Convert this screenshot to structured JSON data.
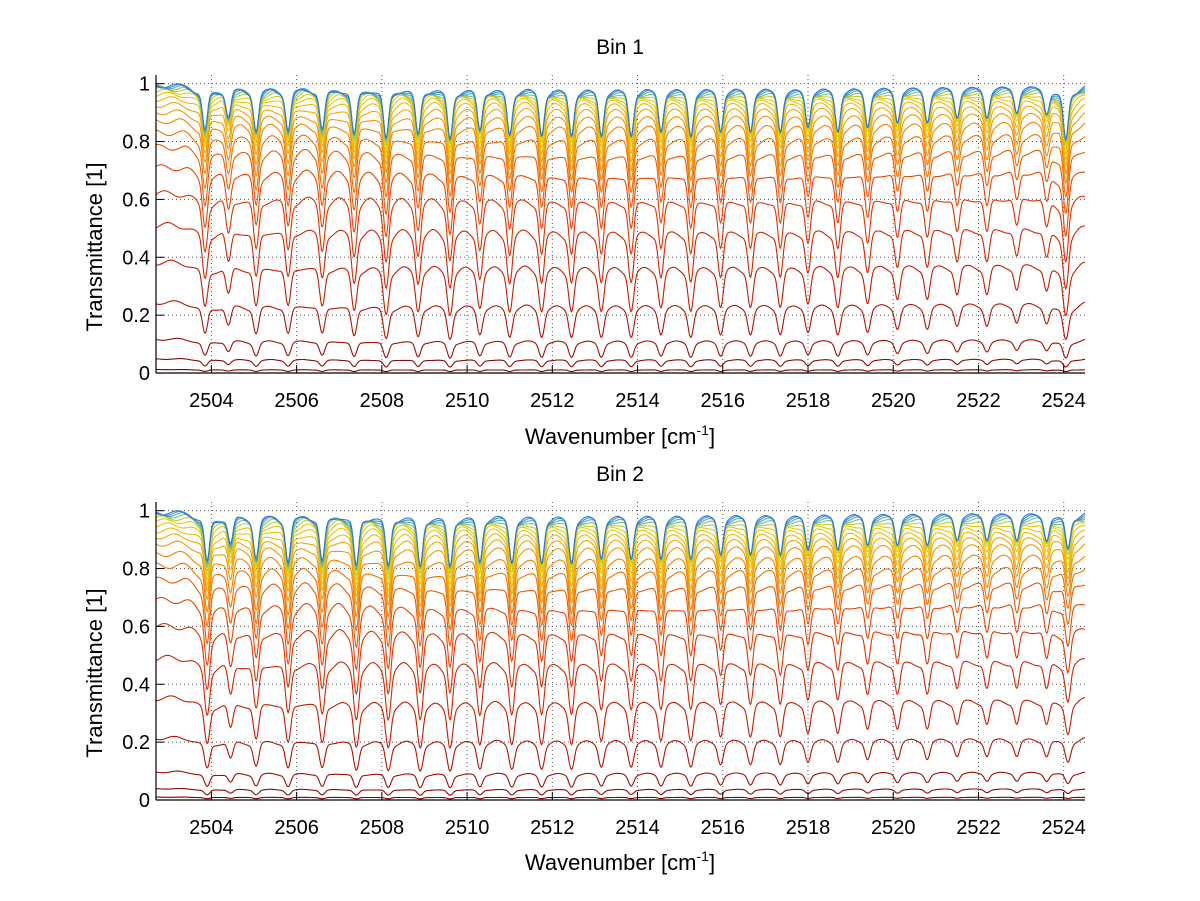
{
  "figure": {
    "colormap": [
      "#6b0000",
      "#8f0a00",
      "#b81400",
      "#d82800",
      "#ee4a00",
      "#f57a00",
      "#f7a000",
      "#f2c200",
      "#d0cf1a",
      "#4bb0c0",
      "#2f78d8"
    ]
  },
  "chart_data": [
    {
      "type": "line",
      "title": "Bin 1",
      "xlabel_main": "Wavenumber [cm",
      "xlabel_sup": "-1",
      "xlabel_close": "]",
      "ylabel": "Transmittance [1]",
      "xlim": [
        2502.7,
        2524.5
      ],
      "ylim": [
        0,
        1.03
      ],
      "x_ticks": [
        2504,
        2506,
        2508,
        2510,
        2512,
        2514,
        2516,
        2518,
        2520,
        2522,
        2524
      ],
      "y_ticks": [
        0,
        0.2,
        0.4,
        0.6,
        0.8,
        1
      ],
      "y_tick_labels": [
        "0",
        "0.2",
        "0.4",
        "0.6",
        "0.8",
        "1"
      ],
      "grid": "dotted",
      "absorption_line_centers": [
        2503.85,
        2504.4,
        2505.05,
        2505.8,
        2506.6,
        2507.35,
        2508.1,
        2508.85,
        2509.6,
        2510.3,
        2511.0,
        2511.75,
        2512.45,
        2513.15,
        2513.85,
        2514.55,
        2515.25,
        2515.95,
        2516.65,
        2517.35,
        2518.0,
        2518.7,
        2519.4,
        2520.1,
        2520.8,
        2521.5,
        2522.2,
        2522.9,
        2523.6,
        2524.05
      ],
      "absorption_line_depths": [
        0.45,
        0.3,
        0.45,
        0.45,
        0.45,
        0.5,
        0.55,
        0.5,
        0.55,
        0.45,
        0.5,
        0.5,
        0.5,
        0.5,
        0.5,
        0.45,
        0.5,
        0.45,
        0.45,
        0.45,
        0.4,
        0.45,
        0.4,
        0.35,
        0.35,
        0.3,
        0.3,
        0.25,
        0.25,
        0.55
      ],
      "series_baseline_transmittance": [
        0.0,
        0.012,
        0.05,
        0.12,
        0.25,
        0.39,
        0.52,
        0.63,
        0.72,
        0.79,
        0.84,
        0.88,
        0.91,
        0.935,
        0.955,
        0.97,
        0.98,
        0.988,
        0.993,
        0.997,
        0.999,
        1.0
      ]
    },
    {
      "type": "line",
      "title": "Bin 2",
      "xlabel_main": "Wavenumber [cm",
      "xlabel_sup": "-1",
      "xlabel_close": "]",
      "ylabel": "Transmittance [1]",
      "xlim": [
        2502.7,
        2524.5
      ],
      "ylim": [
        0,
        1.03
      ],
      "x_ticks": [
        2504,
        2506,
        2508,
        2510,
        2512,
        2514,
        2516,
        2518,
        2520,
        2522,
        2524
      ],
      "y_ticks": [
        0,
        0.2,
        0.4,
        0.6,
        0.8,
        1
      ],
      "y_tick_labels": [
        "0",
        "0.2",
        "0.4",
        "0.6",
        "0.8",
        "1"
      ],
      "grid": "dotted",
      "absorption_line_centers": [
        2503.9,
        2504.45,
        2505.05,
        2505.8,
        2506.6,
        2507.4,
        2508.15,
        2508.9,
        2509.6,
        2510.3,
        2511.05,
        2511.75,
        2512.45,
        2513.15,
        2513.85,
        2514.55,
        2515.25,
        2515.95,
        2516.65,
        2517.35,
        2518.0,
        2518.7,
        2519.4,
        2520.1,
        2520.8,
        2521.5,
        2522.2,
        2522.9,
        2523.6,
        2524.1
      ],
      "absorption_line_depths": [
        0.5,
        0.3,
        0.45,
        0.5,
        0.5,
        0.55,
        0.55,
        0.55,
        0.55,
        0.5,
        0.5,
        0.5,
        0.5,
        0.45,
        0.45,
        0.45,
        0.45,
        0.4,
        0.4,
        0.4,
        0.35,
        0.35,
        0.3,
        0.3,
        0.3,
        0.25,
        0.25,
        0.25,
        0.25,
        0.35
      ],
      "series_baseline_transmittance": [
        0.0,
        0.01,
        0.04,
        0.1,
        0.22,
        0.36,
        0.5,
        0.61,
        0.7,
        0.77,
        0.82,
        0.86,
        0.895,
        0.92,
        0.94,
        0.958,
        0.972,
        0.982,
        0.99,
        0.995,
        0.998,
        1.0
      ]
    }
  ]
}
